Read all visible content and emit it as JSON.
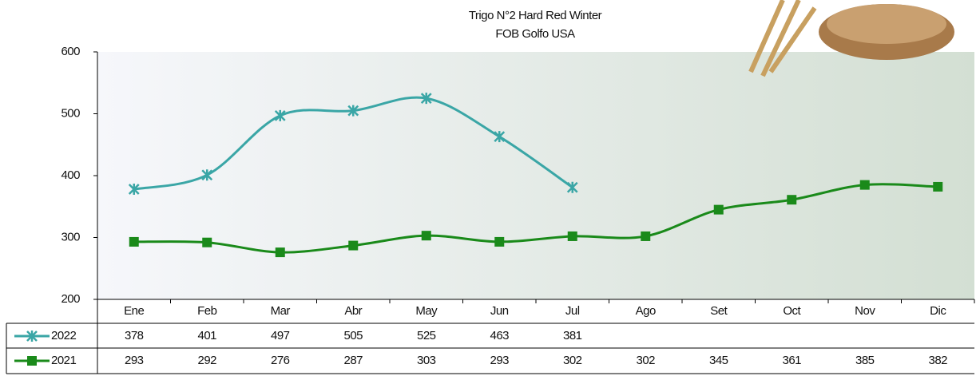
{
  "chart_data": {
    "type": "line",
    "title": "Trigo N°2 Hard Red Winter",
    "subtitle": "FOB Golfo USA",
    "categories": [
      "Ene",
      "Feb",
      "Mar",
      "Abr",
      "May",
      "Jun",
      "Jul",
      "Ago",
      "Set",
      "Oct",
      "Nov",
      "Dic"
    ],
    "series": [
      {
        "name": "2022",
        "color": "#3aa6a6",
        "marker": "x",
        "values": [
          378,
          401,
          497,
          505,
          525,
          463,
          381,
          null,
          null,
          null,
          null,
          null
        ]
      },
      {
        "name": "2021",
        "color": "#1a8a1a",
        "marker": "square",
        "values": [
          293,
          292,
          276,
          287,
          303,
          293,
          302,
          302,
          345,
          361,
          385,
          382
        ]
      }
    ],
    "ylim": [
      200,
      600
    ],
    "yticks": [
      200,
      300,
      400,
      500,
      600
    ],
    "grid": false
  }
}
